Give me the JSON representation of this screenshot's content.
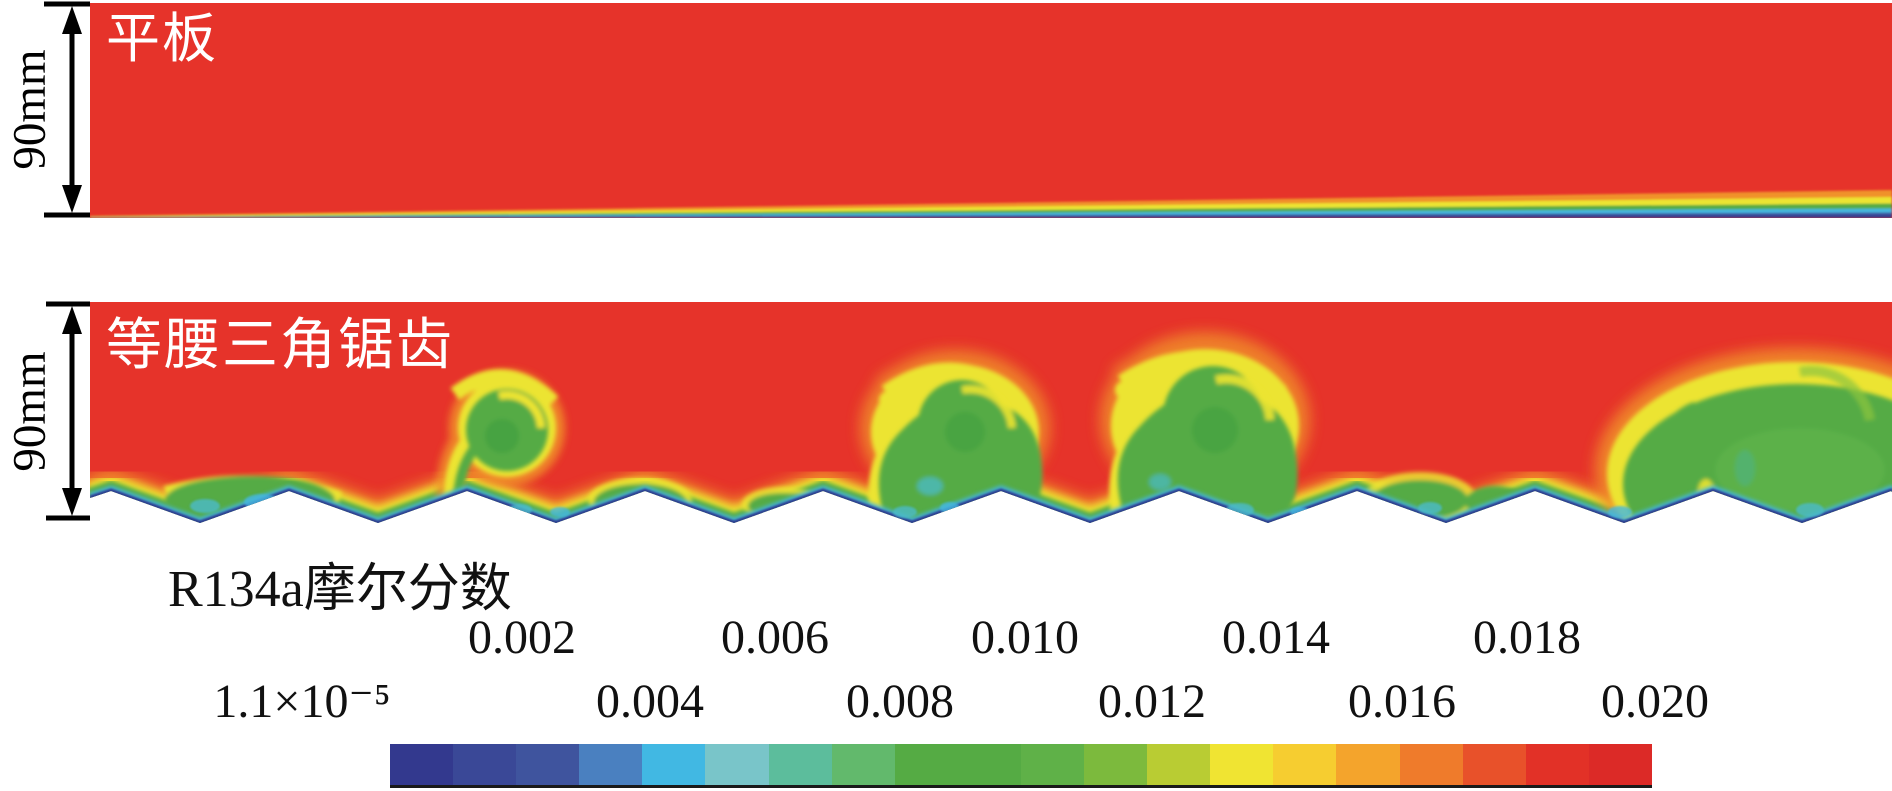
{
  "figure": {
    "panels": [
      {
        "label": "平板",
        "dimension": "90mm"
      },
      {
        "label": "等腰三角锯齿",
        "dimension": "90mm"
      }
    ],
    "legend": {
      "title": "R134a摩尔分数",
      "row_top": [
        "0.002",
        "0.006",
        "0.010",
        "0.014",
        "0.018"
      ],
      "row_bottom": [
        "1.1×10⁻⁵",
        "0.004",
        "0.008",
        "0.012",
        "0.016",
        "0.020"
      ]
    }
  },
  "chart_data": {
    "type": "heatmap",
    "title": "R134a摩尔分数",
    "colorbar": {
      "orientation": "horizontal",
      "discrete_levels": 20,
      "min_label": "1.1×10⁻⁵",
      "max_label": "0.020",
      "tick_values": [
        1.1e-05,
        0.002,
        0.004,
        0.006,
        0.008,
        0.01,
        0.012,
        0.014,
        0.016,
        0.018,
        0.02
      ],
      "colors": [
        "#33398e",
        "#3a4897",
        "#3f549e",
        "#4a80c0",
        "#41b8e3",
        "#79c5c9",
        "#5cbd9c",
        "#62b96c",
        "#55ab44",
        "#55ab44",
        "#5fb148",
        "#7cba3d",
        "#b9cc33",
        "#f0e432",
        "#f6cd30",
        "#f4a42c",
        "#ef7b2b",
        "#e8512a",
        "#e23127",
        "#dc2a27"
      ]
    },
    "field_colors": {
      "freestream_red": "#e6332a",
      "mixing_green": "#55ab44",
      "rim_yellow": "#ece431",
      "rim_orange": "#f0922b",
      "near_wall_cyan": "#45b8e0",
      "wall_navy": "#2e3a8e"
    },
    "panels": [
      {
        "label": "平板",
        "height_label": "90mm",
        "description": "Flat plate: uniform red free stream at maximum R134a mole fraction with a thin rainbow boundary layer (blue at the wall) growing slowly downstream."
      },
      {
        "label": "等腰三角锯齿",
        "height_label": "90mm",
        "description": "Isosceles-triangle sawtooth wall: blue film on the teeth, green mixing layer in the valleys, and yellow-rimmed green vortex billows growing larger downstream."
      }
    ]
  }
}
